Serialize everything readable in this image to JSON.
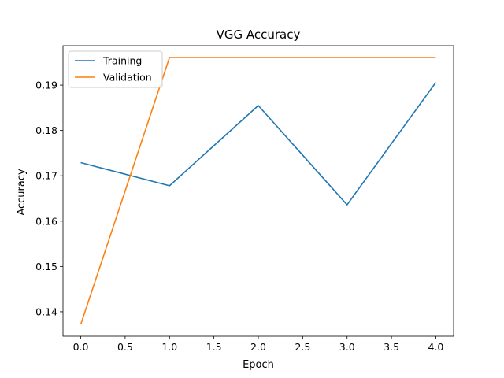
{
  "chart_data": {
    "type": "line",
    "title": "VGG Accuracy",
    "xlabel": "Epoch",
    "ylabel": "Accuracy",
    "xlim": [
      -0.2,
      4.2
    ],
    "ylim": [
      0.1346,
      0.1987
    ],
    "xticks": [
      0.0,
      0.5,
      1.0,
      1.5,
      2.0,
      2.5,
      3.0,
      3.5,
      4.0
    ],
    "xtick_labels": [
      "0.0",
      "0.5",
      "1.0",
      "1.5",
      "2.0",
      "2.5",
      "3.0",
      "3.5",
      "4.0"
    ],
    "yticks": [
      0.14,
      0.15,
      0.16,
      0.17,
      0.18,
      0.19
    ],
    "ytick_labels": [
      "0.14",
      "0.15",
      "0.16",
      "0.17",
      "0.18",
      "0.19"
    ],
    "x": [
      0,
      1,
      2,
      3,
      4
    ],
    "series": [
      {
        "name": "Training",
        "values": [
          0.1729,
          0.1678,
          0.1855,
          0.1636,
          0.1906
        ],
        "color": "#1f77b4"
      },
      {
        "name": "Validation",
        "values": [
          0.1372,
          0.1961,
          0.1961,
          0.1961,
          0.1961
        ],
        "color": "#ff7f0e"
      }
    ],
    "legend": "top-left",
    "grid": false
  }
}
